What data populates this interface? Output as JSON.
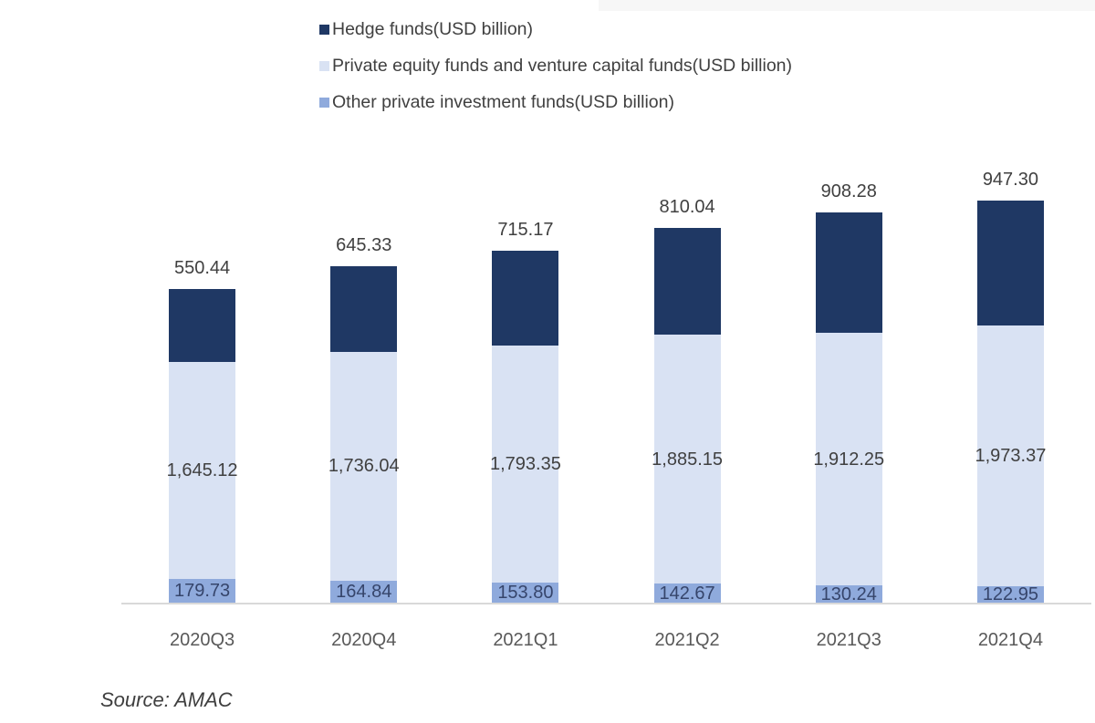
{
  "chart_data": {
    "type": "bar",
    "stacked": true,
    "orientation": "vertical",
    "categories": [
      "2020Q3",
      "2020Q4",
      "2021Q1",
      "2021Q2",
      "2021Q3",
      "2021Q4"
    ],
    "series": [
      {
        "name": "Hedge funds(USD billion)",
        "color": "#1F3864",
        "values": [
          550.44,
          645.33,
          715.17,
          810.04,
          908.28,
          947.3
        ]
      },
      {
        "name": "Private equity funds and venture capital funds(USD billion)",
        "color": "#D9E2F3",
        "values": [
          1645.12,
          1736.04,
          1793.35,
          1885.15,
          1912.25,
          1973.37
        ]
      },
      {
        "name": "Other private investment funds(USD billion)",
        "color": "#8FAADC",
        "values": [
          179.73,
          164.84,
          153.8,
          142.67,
          130.24,
          122.95
        ]
      }
    ],
    "value_labels": true,
    "legend_position": "top",
    "grid": false,
    "baseline_color": "#d9d9d9",
    "label_color": "#404040",
    "axis_label_color": "#595959",
    "ylim": [
      0,
      3100
    ]
  },
  "source": {
    "label": "Source: AMAC"
  }
}
